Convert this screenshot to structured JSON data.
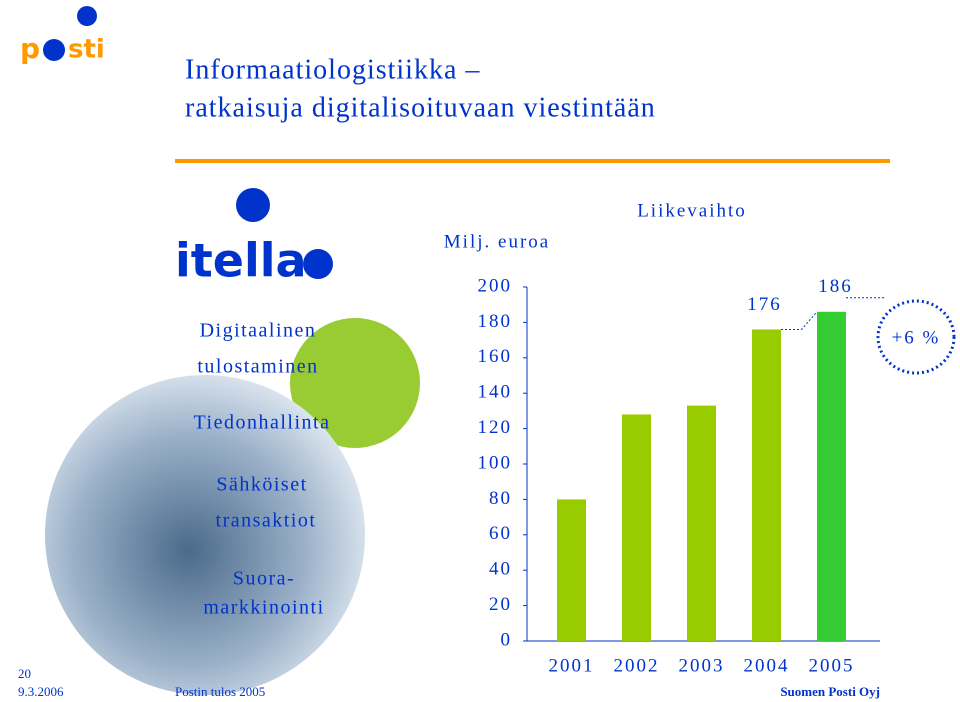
{
  "header": {
    "logo": "posti",
    "title": [
      "Informaatiologistiikka –",
      "ratkaisuja digitalisoituvaan viestintään"
    ]
  },
  "left": {
    "logo": "itella",
    "items": [
      "Digitaalinen",
      "tulostaminen",
      "Tiedonhallinta",
      "Sähköiset",
      "transaktiot",
      "Suora-",
      "markkinointi"
    ]
  },
  "footer": {
    "page": "20",
    "date": "9.3.2006",
    "event": "Postin tulos 2005",
    "company": "Suomen Posti Oyj"
  },
  "chart_data": {
    "type": "bar",
    "title": "Liikevaihto",
    "y_label": "Milj. euroa",
    "categories": [
      "2001",
      "2002",
      "2003",
      "2004",
      "2005"
    ],
    "values": [
      80,
      128,
      133,
      176,
      186
    ],
    "value_labels": [
      null,
      null,
      null,
      "176",
      "186"
    ],
    "colors": [
      "#99cc00",
      "#99cc00",
      "#99cc00",
      "#99cc00",
      "#33cc33"
    ],
    "ylim": [
      0,
      200
    ],
    "yticks": [
      0,
      20,
      40,
      60,
      80,
      100,
      120,
      140,
      160,
      180,
      200
    ],
    "annotation": "+6 %"
  }
}
